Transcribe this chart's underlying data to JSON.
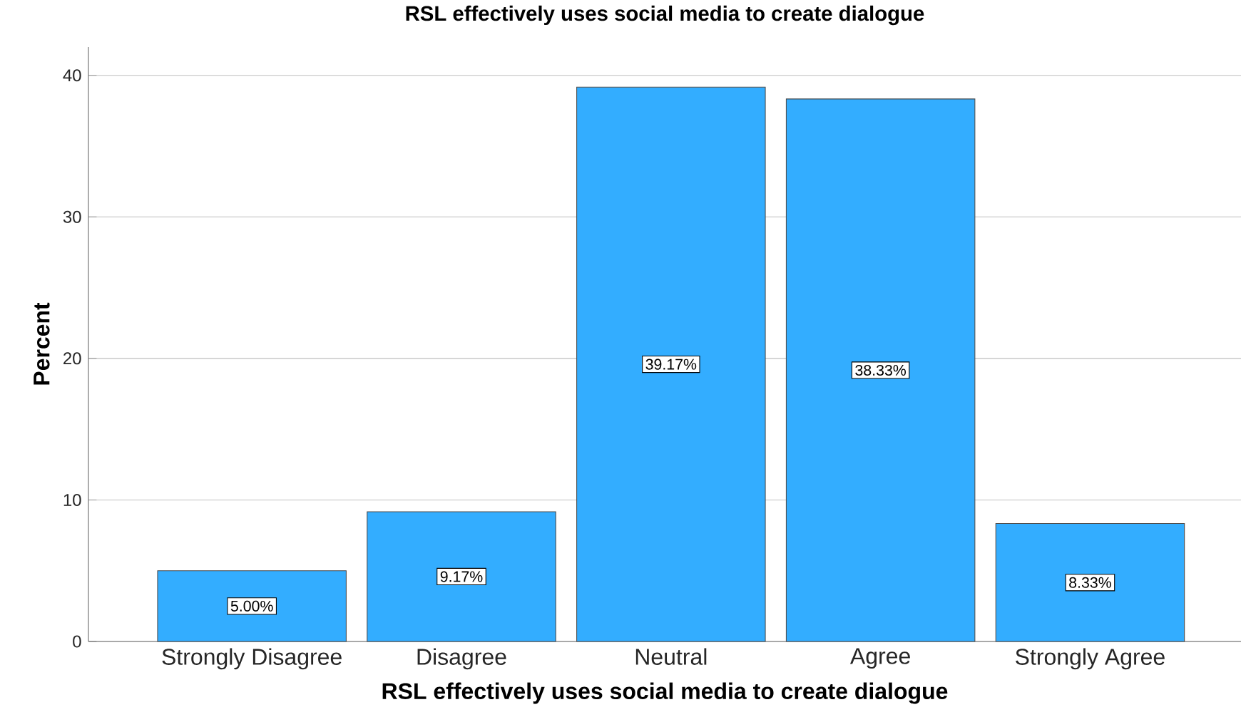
{
  "chart_data": {
    "type": "bar",
    "title": "RSL effectively uses social media to create dialogue",
    "xlabel": "RSL effectively uses social media to create dialogue",
    "ylabel": "Percent",
    "categories": [
      "Strongly Disagree",
      "Disagree",
      "Neutral",
      "Agree",
      "Strongly Agree"
    ],
    "values": [
      5.0,
      9.17,
      39.17,
      38.33,
      8.33
    ],
    "value_labels": [
      "5.00%",
      "9.17%",
      "39.17%",
      "38.33%",
      "8.33%"
    ],
    "color": "#33adff",
    "ylim": [
      0,
      42
    ],
    "yticks": [
      0,
      10,
      20,
      30,
      40
    ],
    "grid": "y"
  }
}
